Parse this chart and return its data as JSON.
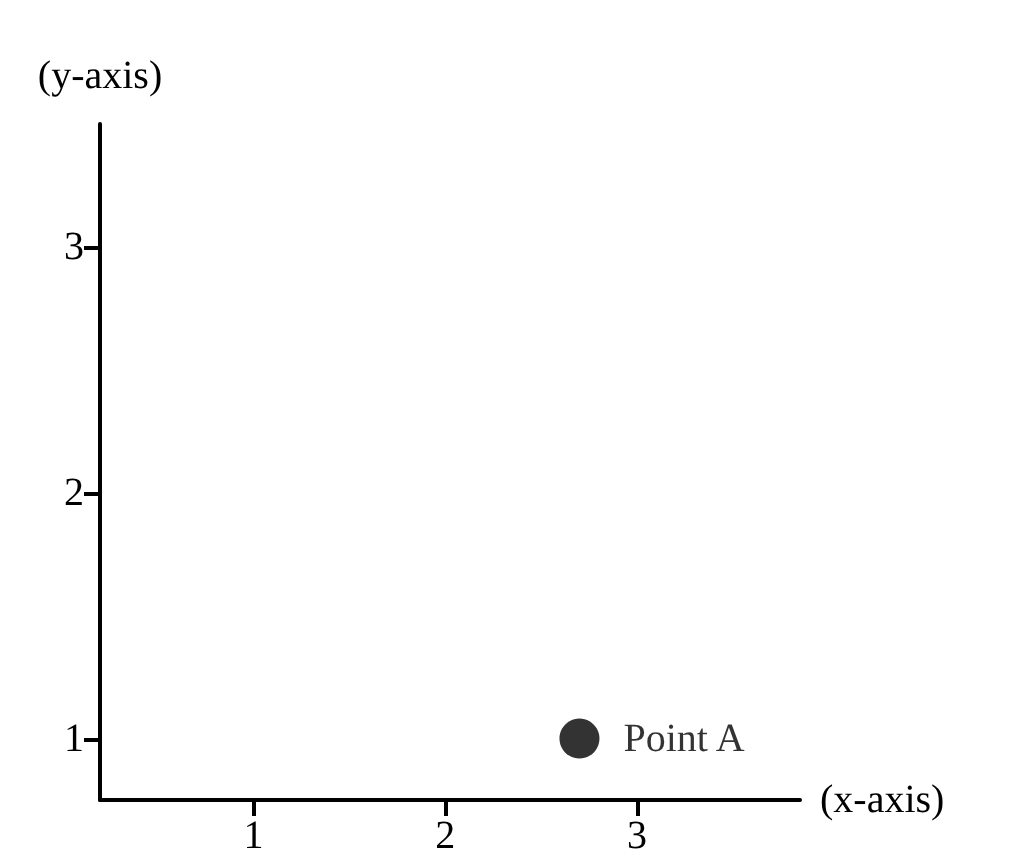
{
  "chart_data": {
    "type": "scatter",
    "xlabel": "(x-axis)",
    "ylabel": "(y-axis)",
    "x": [
      2.7
    ],
    "series": [
      {
        "name": "Point A",
        "color": "#000000",
        "values": [
          1
        ]
      }
    ],
    "xlim": [
      0.2,
      3.85
    ],
    "ylim": [
      0.75,
      3.5
    ],
    "xticks": [
      1,
      2,
      3
    ],
    "yticks": [
      1,
      2,
      3
    ],
    "grid": false,
    "marker": "circle",
    "legend": false
  }
}
